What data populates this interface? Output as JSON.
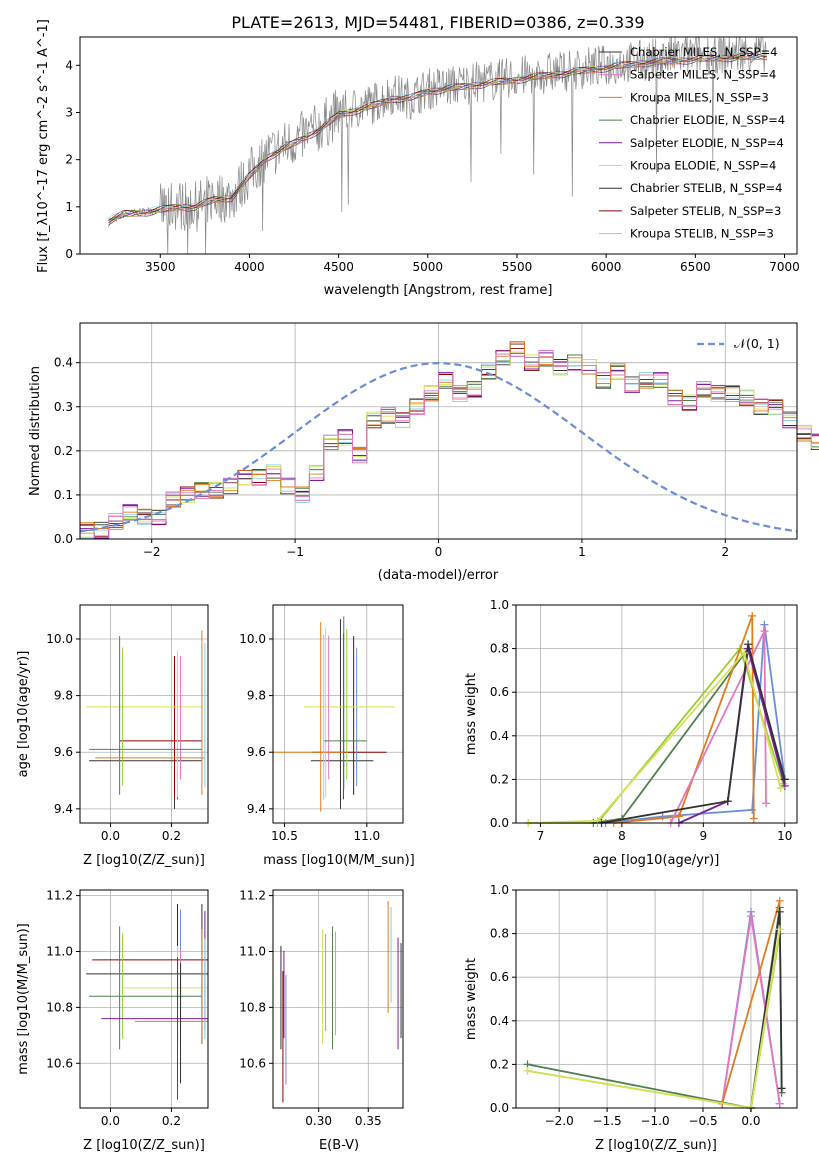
{
  "figure_title": "PLATE=2613, MJD=54481, FIBERID=0386, z=0.339",
  "series_colors": [
    "#333333",
    "#8b0000",
    "#87ceeb",
    "#4f7f4f",
    "#7b1fa2",
    "#d4e157",
    "#e07b20",
    "#e377c2",
    "#6b8ed6",
    "#9acd32",
    "#888888"
  ],
  "chart_data": [
    {
      "type": "line",
      "xlabel": "wavelength [Angstrom, rest frame]",
      "ylabel": "Flux [f_λ10^-17 erg cm^-2 s^-1 A^-1]",
      "xlim": [
        3050,
        7070
      ],
      "ylim": [
        0,
        4.6
      ],
      "xticks": [
        3500,
        4000,
        4500,
        5000,
        5500,
        6000,
        6500,
        7000
      ],
      "yticks": [
        0,
        1,
        2,
        3,
        4
      ],
      "legend": "top-right",
      "legend_entries": [
        {
          "label": "Chabrier MILES, N_SSP=4",
          "color": "#333333"
        },
        {
          "label": "Salpeter MILES, N_SSP=4",
          "color": "#e377c2"
        },
        {
          "label": "Kroupa MILES, N_SSP=3",
          "color": "#e07b20"
        },
        {
          "label": "Chabrier ELODIE, N_SSP=4",
          "color": "#4f7f4f"
        },
        {
          "label": "Salpeter ELODIE, N_SSP=4",
          "color": "#7b1fa2"
        },
        {
          "label": "Kroupa ELODIE, N_SSP=4",
          "color": "#d4e157"
        },
        {
          "label": "Chabrier STELIB, N_SSP=4",
          "color": "#333333"
        },
        {
          "label": "Salpeter STELIB, N_SSP=3",
          "color": "#8b0000"
        },
        {
          "label": "Kroupa STELIB, N_SSP=3",
          "color": "#87ceeb"
        }
      ],
      "data_x": [
        3210,
        3300,
        3400,
        3500,
        3600,
        3700,
        3800,
        3900,
        4000,
        4100,
        4200,
        4300,
        4400,
        4500,
        4600,
        4700,
        4800,
        4900,
        5000,
        5200,
        5400,
        5600,
        5800,
        6000,
        6200,
        6400,
        6600,
        6900
      ],
      "data_y": [
        0.65,
        0.85,
        0.9,
        0.95,
        1.05,
        1.0,
        1.2,
        1.2,
        1.7,
        2.1,
        2.3,
        2.5,
        2.7,
        3.0,
        3.1,
        3.2,
        3.4,
        3.3,
        3.5,
        3.6,
        3.7,
        3.8,
        3.9,
        4.0,
        4.1,
        4.2,
        4.25,
        4.3
      ],
      "model_y": [
        0.7,
        0.85,
        0.88,
        0.93,
        1.0,
        1.0,
        1.15,
        1.2,
        1.65,
        2.05,
        2.25,
        2.45,
        2.65,
        2.95,
        3.05,
        3.15,
        3.3,
        3.3,
        3.45,
        3.55,
        3.65,
        3.75,
        3.85,
        3.95,
        4.05,
        4.1,
        4.15,
        4.2
      ]
    },
    {
      "type": "line",
      "xlabel": "(data-model)/error",
      "ylabel": "Normed distribution",
      "xlim": [
        -2.5,
        2.5
      ],
      "ylim": [
        0,
        0.49
      ],
      "xticks": [
        -2,
        -1,
        0,
        1,
        2
      ],
      "yticks": [
        0.0,
        0.1,
        0.2,
        0.3,
        0.4
      ],
      "grid": true,
      "legend": "top-right",
      "legend_entries": [
        {
          "label": "𝒩(0, 1)",
          "color": "#6b8ed6"
        }
      ],
      "bin_width": 0.1,
      "bin_start": -2.5,
      "bin_values": [
        0.02,
        0.02,
        0.04,
        0.06,
        0.05,
        0.05,
        0.09,
        0.1,
        0.11,
        0.11,
        0.12,
        0.14,
        0.14,
        0.15,
        0.12,
        0.1,
        0.15,
        0.22,
        0.23,
        0.19,
        0.27,
        0.28,
        0.27,
        0.3,
        0.33,
        0.36,
        0.33,
        0.34,
        0.38,
        0.41,
        0.43,
        0.4,
        0.41,
        0.39,
        0.4,
        0.39,
        0.36,
        0.38,
        0.35,
        0.36,
        0.36,
        0.32,
        0.31,
        0.34,
        0.33,
        0.33,
        0.32,
        0.3,
        0.3,
        0.27,
        0.24,
        0.22,
        0.2,
        0.2,
        0.19,
        0.17,
        0.18,
        0.15,
        0.13,
        0.11,
        0.11,
        0.09,
        0.09,
        0.08,
        0.07,
        0.07,
        0.06,
        0.05,
        0.04,
        0.03
      ]
    },
    {
      "type": "scatter",
      "xlabel": "Z [log10(Z/Z_sun)]",
      "ylabel": "age  [log10(age/yr)]",
      "xlim": [
        -0.1,
        0.32
      ],
      "ylim": [
        9.35,
        10.12
      ],
      "xticks": [
        0.0,
        0.2
      ],
      "yticks": [
        9.4,
        9.6,
        9.8,
        10.0
      ],
      "points": [
        {
          "x": 0.21,
          "y": 9.57,
          "xerr": [
            0.28,
            0.09
          ],
          "yerr": [
            0.17,
            0.35
          ]
        },
        {
          "x": 0.21,
          "y": 9.64,
          "xerr": [
            0.18,
            0.09
          ],
          "yerr": [
            0.2,
            0.3
          ]
        },
        {
          "x": 0.22,
          "y": 9.76,
          "xerr": [
            0.3,
            0.08
          ],
          "yerr": [
            0.32,
            0.2
          ]
        },
        {
          "x": 0.03,
          "y": 9.61,
          "xerr": [
            0.1,
            0.27
          ],
          "yerr": [
            0.16,
            0.4
          ]
        },
        {
          "x": 0.3,
          "y": 9.58,
          "xerr": [
            0.35,
            0.01
          ],
          "yerr": [
            0.13,
            0.45
          ]
        }
      ]
    },
    {
      "type": "scatter",
      "xlabel": "mass [log10(M/M_sun)]",
      "ylabel": "",
      "xlim": [
        10.43,
        11.22
      ],
      "ylim": [
        9.35,
        10.12
      ],
      "xticks": [
        10.5,
        11.0
      ],
      "yticks": [
        9.4,
        9.6,
        9.8,
        10.0
      ],
      "points": [
        {
          "x": 10.84,
          "y": 9.57,
          "xerr": [
            0.18,
            0.2
          ],
          "yerr": [
            0.17,
            0.5
          ]
        },
        {
          "x": 10.92,
          "y": 9.6,
          "xerr": [
            0.25,
            0.2
          ],
          "yerr": [
            0.15,
            0.41
          ]
        },
        {
          "x": 10.75,
          "y": 9.76,
          "xerr": [
            0.13,
            0.42
          ],
          "yerr": [
            0.32,
            0.28
          ]
        },
        {
          "x": 10.86,
          "y": 9.64,
          "xerr": [
            0.12,
            0.14
          ],
          "yerr": [
            0.17,
            0.44
          ]
        },
        {
          "x": 10.72,
          "y": 9.6,
          "xerr": [
            0.3,
            0.14
          ],
          "yerr": [
            0.21,
            0.46
          ]
        }
      ]
    },
    {
      "type": "line",
      "xlabel": "age  [log10(age/yr)]",
      "ylabel": "mass weight",
      "xlim": [
        6.7,
        10.15
      ],
      "ylim": [
        0.0,
        1.0
      ],
      "xticks": [
        7,
        8,
        9,
        10
      ],
      "yticks": [
        0.0,
        0.2,
        0.4,
        0.6,
        0.8,
        1.0
      ],
      "grid": true,
      "series": [
        {
          "color": "#9acd32",
          "x": [
            6.85,
            7.7,
            9.45,
            9.98
          ],
          "y": [
            0.0,
            0.0,
            0.8,
            0.18
          ]
        },
        {
          "color": "#4f7f4f",
          "x": [
            7.65,
            8.0,
            9.55,
            10.0
          ],
          "y": [
            0.0,
            0.02,
            0.8,
            0.2
          ]
        },
        {
          "color": "#6b8ed6",
          "x": [
            7.8,
            8.5,
            9.6,
            9.75,
            10.0
          ],
          "y": [
            0.0,
            0.03,
            0.06,
            0.91,
            0.2
          ]
        },
        {
          "color": "#e07b20",
          "x": [
            7.9,
            8.7,
            9.6,
            9.62
          ],
          "y": [
            0.0,
            0.03,
            0.95,
            0.02
          ]
        },
        {
          "color": "#e377c2",
          "x": [
            8.6,
            9.75,
            9.77
          ],
          "y": [
            0.0,
            0.88,
            0.09
          ]
        },
        {
          "color": "#7b1fa2",
          "x": [
            8.7,
            9.3,
            9.55,
            10.0
          ],
          "y": [
            0.0,
            0.1,
            0.8,
            0.17
          ]
        },
        {
          "color": "#333333",
          "x": [
            7.75,
            9.3,
            9.55,
            10.0
          ],
          "y": [
            0.0,
            0.1,
            0.82,
            0.2
          ]
        },
        {
          "color": "#d4e157",
          "x": [
            6.85,
            7.7,
            9.5,
            9.95
          ],
          "y": [
            0.0,
            0.01,
            0.78,
            0.16
          ]
        }
      ]
    },
    {
      "type": "scatter",
      "xlabel": "Z [log10(Z/Z_sun)]",
      "ylabel": "mass [log10(M/M_sun)]",
      "xlim": [
        -0.1,
        0.32
      ],
      "ylim": [
        10.44,
        11.22
      ],
      "xticks": [
        0.0,
        0.2
      ],
      "yticks": [
        10.6,
        10.8,
        11.0,
        11.2
      ],
      "points": [
        {
          "x": 0.3,
          "y": 10.92,
          "xerr": [
            0.38,
            0.02
          ],
          "yerr": [
            0.25,
            0.25
          ]
        },
        {
          "x": 0.22,
          "y": 10.97,
          "xerr": [
            0.28,
            0.1
          ],
          "yerr": [
            0.3,
            0.2
          ]
        },
        {
          "x": 0.22,
          "y": 10.87,
          "xerr": [
            0.18,
            0.1
          ],
          "yerr": [
            0.2,
            0.15
          ]
        },
        {
          "x": 0.03,
          "y": 10.84,
          "xerr": [
            0.1,
            0.27
          ],
          "yerr": [
            0.19,
            0.25
          ]
        },
        {
          "x": 0.3,
          "y": 10.75,
          "xerr": [
            0.22,
            0.02
          ],
          "yerr": [
            0.08,
            0.33
          ]
        },
        {
          "x": 0.22,
          "y": 10.76,
          "xerr": [
            0.25,
            0.1
          ],
          "yerr": [
            0.29,
            0.22
          ]
        }
      ]
    },
    {
      "type": "scatter",
      "xlabel": "E(B-V)",
      "ylabel": "",
      "xlim": [
        0.254,
        0.385
      ],
      "ylim": [
        10.44,
        11.22
      ],
      "xticks": [
        0.3,
        0.35
      ],
      "yticks": [
        10.6,
        10.8,
        11.0,
        11.2
      ],
      "points": [
        {
          "x": 0.262,
          "y": 10.85,
          "yerr": [
            0.2,
            0.17
          ]
        },
        {
          "x": 0.264,
          "y": 10.78,
          "yerr": [
            0.32,
            0.15
          ]
        },
        {
          "x": 0.304,
          "y": 10.9,
          "yerr": [
            0.23,
            0.18
          ]
        },
        {
          "x": 0.314,
          "y": 10.9,
          "yerr": [
            0.25,
            0.19
          ]
        },
        {
          "x": 0.37,
          "y": 10.97,
          "yerr": [
            0.19,
            0.21
          ]
        },
        {
          "x": 0.38,
          "y": 10.85,
          "yerr": [
            0.2,
            0.2
          ]
        }
      ]
    },
    {
      "type": "line",
      "xlabel": "Z [log10(Z/Z_sun)]",
      "ylabel": "mass weight",
      "xlim": [
        -2.45,
        0.48
      ],
      "ylim": [
        0.0,
        1.0
      ],
      "xticks": [
        -2.0,
        -1.5,
        -1.0,
        -0.5,
        0.0,
        0.5
      ],
      "yticks": [
        0.0,
        0.2,
        0.4,
        0.6,
        0.8,
        1.0
      ],
      "grid": true,
      "series": [
        {
          "color": "#4f7f4f",
          "x": [
            -2.33,
            0.0,
            0.3,
            0.32
          ],
          "y": [
            0.2,
            0.0,
            0.92,
            0.07
          ]
        },
        {
          "color": "#9acd32",
          "x": [
            -2.33,
            0.0,
            0.3
          ],
          "y": [
            0.17,
            0.0,
            0.8
          ]
        },
        {
          "color": "#6b8ed6",
          "x": [
            -0.3,
            0.0,
            0.3
          ],
          "y": [
            0.02,
            0.9,
            0.02
          ]
        },
        {
          "color": "#e377c2",
          "x": [
            -0.3,
            0.0,
            0.3
          ],
          "y": [
            0.02,
            0.88,
            0.02
          ]
        },
        {
          "color": "#e07b20",
          "x": [
            -0.3,
            0.3
          ],
          "y": [
            0.02,
            0.95
          ]
        },
        {
          "color": "#333333",
          "x": [
            0.0,
            0.3,
            0.32
          ],
          "y": [
            0.0,
            0.9,
            0.09
          ]
        },
        {
          "color": "#d4e157",
          "x": [
            -2.33,
            0.0,
            0.3
          ],
          "y": [
            0.17,
            0.0,
            0.82
          ]
        }
      ]
    }
  ]
}
